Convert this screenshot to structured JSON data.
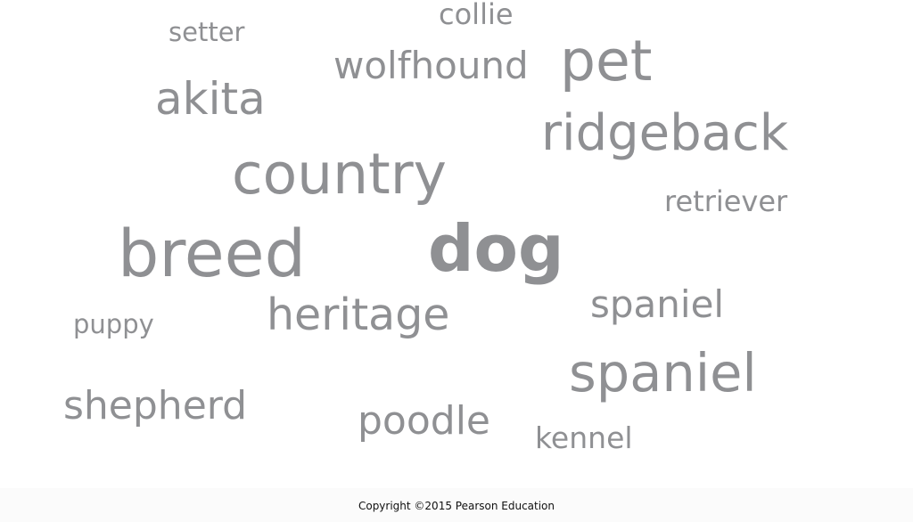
{
  "word_cloud": {
    "text_color": "#8f9093",
    "words": [
      {
        "id": "collie",
        "text": "collie"
      },
      {
        "id": "setter",
        "text": "setter"
      },
      {
        "id": "wolfhound",
        "text": "wolfhound"
      },
      {
        "id": "pet",
        "text": "pet"
      },
      {
        "id": "akita",
        "text": "akita"
      },
      {
        "id": "ridgeback",
        "text": "ridgeback"
      },
      {
        "id": "country",
        "text": "country"
      },
      {
        "id": "retriever",
        "text": "retriever"
      },
      {
        "id": "breed",
        "text": "breed"
      },
      {
        "id": "dog",
        "text": "dog"
      },
      {
        "id": "spaniel-1",
        "text": "spaniel"
      },
      {
        "id": "heritage",
        "text": "heritage"
      },
      {
        "id": "puppy",
        "text": "puppy"
      },
      {
        "id": "spaniel-2",
        "text": "spaniel"
      },
      {
        "id": "shepherd",
        "text": "shepherd"
      },
      {
        "id": "poodle",
        "text": "poodle"
      },
      {
        "id": "kennel",
        "text": "kennel"
      }
    ]
  },
  "footer": {
    "copyright": "Copyright ©2015 Pearson Education"
  }
}
